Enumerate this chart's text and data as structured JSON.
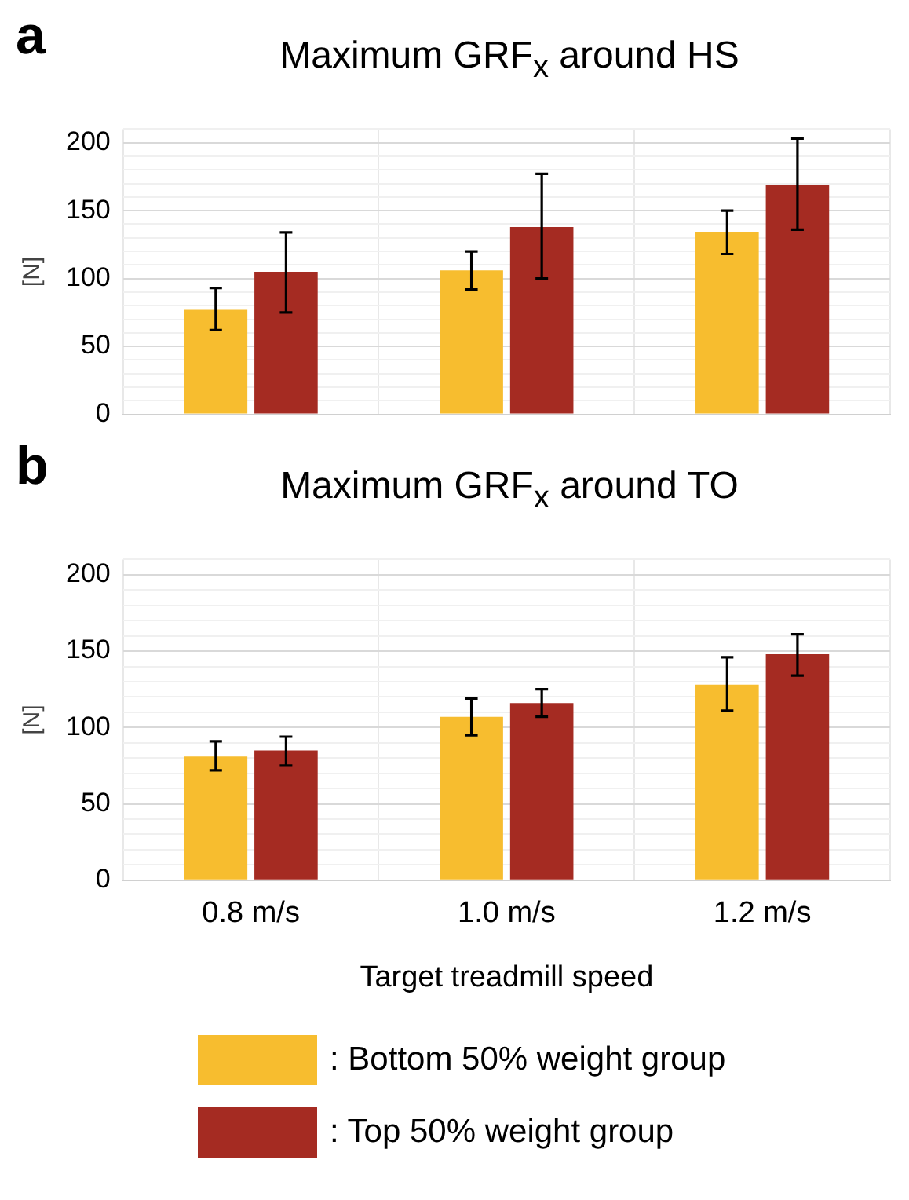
{
  "chart_data": [
    {
      "type": "bar",
      "title": "Maximum GRF$_{x}$ around HS",
      "annotations": [
        "a"
      ],
      "ylabel": "[N]",
      "categories": [
        null,
        null,
        null
      ],
      "tick_labels": "y",
      "series": [
        {
          "color": "#f7bd2f",
          "values": [
            77,
            106,
            134
          ],
          "errors": [
            [
              62,
              93
            ],
            [
              92,
              120
            ],
            [
              118,
              150
            ]
          ]
        },
        {
          "color": "#a52b22",
          "values": [
            105,
            138,
            169
          ],
          "errors": [
            [
              75,
              134
            ],
            [
              100,
              177
            ],
            [
              136,
              203
            ]
          ]
        }
      ],
      "ylim": [
        0,
        210
      ],
      "yticks": [
        0,
        {
          "value": 10,
          "label": null
        },
        {
          "value": 20,
          "label": null
        },
        {
          "value": 30,
          "label": null
        },
        {
          "value": 40,
          "label": null
        },
        50,
        {
          "value": 60,
          "label": null
        },
        {
          "value": 70,
          "label": null
        },
        {
          "value": 80,
          "label": null
        },
        {
          "value": 90,
          "label": null
        },
        100,
        {
          "value": 110,
          "label": null
        },
        {
          "value": 120,
          "label": null
        },
        {
          "value": 130,
          "label": null
        },
        {
          "value": 140,
          "label": null
        },
        150,
        {
          "value": 160,
          "label": null
        },
        {
          "value": 170,
          "label": null
        },
        {
          "value": 180,
          "label": null
        },
        {
          "value": 190,
          "label": null
        },
        200,
        {
          "value": 210,
          "label": null
        }
      ],
      "grid": true
    },
    {
      "type": "bar",
      "title": "Maximum GRF$_{x}$ around TO",
      "annotations": [
        "b"
      ],
      "ylabel": "[N]",
      "xlabel": "Target treadmill speed",
      "categories": [
        "0.8 m/s",
        "1.0 m/s",
        "1.2 m/s"
      ],
      "series": [
        {
          "name": ": Bottom 50% weight group",
          "color": "#f7bd2f",
          "values": [
            81,
            107,
            128
          ],
          "errors": [
            [
              72,
              91
            ],
            [
              95,
              119
            ],
            [
              111,
              146
            ]
          ]
        },
        {
          "name": ": Top 50% weight group",
          "color": "#a52b22",
          "values": [
            85,
            116,
            148
          ],
          "errors": [
            [
              75,
              94
            ],
            [
              107,
              125
            ],
            [
              134,
              161
            ]
          ]
        }
      ],
      "ylim": [
        0,
        210
      ],
      "yticks": [
        0,
        {
          "value": 10,
          "label": null
        },
        {
          "value": 20,
          "label": null
        },
        {
          "value": 30,
          "label": null
        },
        {
          "value": 40,
          "label": null
        },
        50,
        {
          "value": 60,
          "label": null
        },
        {
          "value": 70,
          "label": null
        },
        {
          "value": 80,
          "label": null
        },
        {
          "value": 90,
          "label": null
        },
        100,
        {
          "value": 110,
          "label": null
        },
        {
          "value": 120,
          "label": null
        },
        {
          "value": 130,
          "label": null
        },
        {
          "value": 140,
          "label": null
        },
        150,
        {
          "value": 160,
          "label": null
        },
        {
          "value": 170,
          "label": null
        },
        {
          "value": 180,
          "label": null
        },
        {
          "value": 190,
          "label": null
        },
        200,
        {
          "value": 210,
          "label": null
        }
      ],
      "grid": true,
      "legend": "bottom"
    }
  ]
}
